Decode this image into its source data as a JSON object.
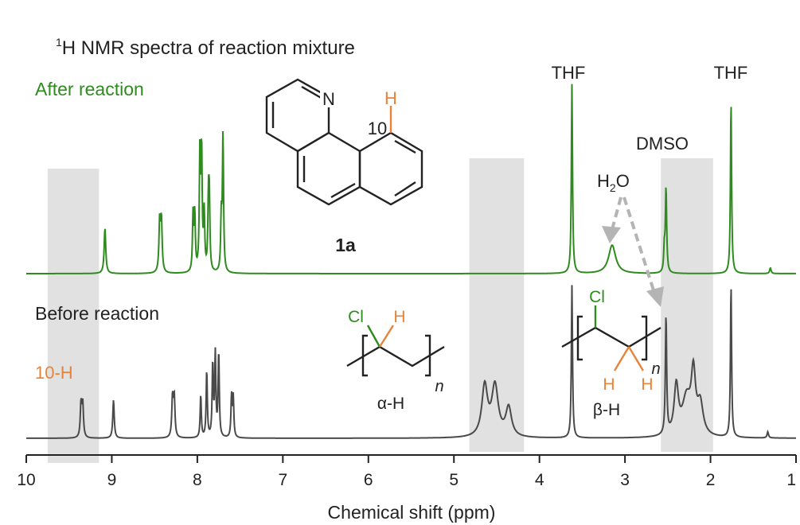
{
  "chart_data": {
    "type": "line",
    "title_sup": "1",
    "title_rest": "H NMR spectra of reaction mixture",
    "xlabel": "Chemical shift (ppm)",
    "x_ticks": [
      10,
      9,
      8,
      7,
      6,
      5,
      4,
      3,
      2,
      1
    ],
    "xlim": [
      10,
      1
    ],
    "series": [
      {
        "name": "After reaction",
        "color": "#2e8b1e",
        "peaks": [
          {
            "ppm": 9.08,
            "h": 0.24,
            "w": 0.011
          },
          {
            "ppm": 8.44,
            "h": 0.27,
            "w": 0.01
          },
          {
            "ppm": 8.42,
            "h": 0.27,
            "w": 0.01
          },
          {
            "ppm": 8.05,
            "h": 0.3,
            "w": 0.008
          },
          {
            "ppm": 8.03,
            "h": 0.3,
            "w": 0.008
          },
          {
            "ppm": 7.97,
            "h": 0.62,
            "w": 0.008
          },
          {
            "ppm": 7.95,
            "h": 0.63,
            "w": 0.008
          },
          {
            "ppm": 7.92,
            "h": 0.3,
            "w": 0.008
          },
          {
            "ppm": 7.87,
            "h": 0.34,
            "w": 0.008
          },
          {
            "ppm": 7.86,
            "h": 0.36,
            "w": 0.008
          },
          {
            "ppm": 7.72,
            "h": 0.28,
            "w": 0.008
          },
          {
            "ppm": 7.7,
            "h": 0.72,
            "w": 0.008
          },
          {
            "ppm": 3.62,
            "h": 1.0,
            "w": 0.008
          },
          {
            "ppm": 3.15,
            "h": 0.15,
            "w": 0.05
          },
          {
            "ppm": 2.52,
            "h": 0.45,
            "w": 0.009
          },
          {
            "ppm": 2.54,
            "h": 0.12,
            "w": 0.008
          },
          {
            "ppm": 1.76,
            "h": 0.91,
            "w": 0.008
          },
          {
            "ppm": 1.3,
            "h": 0.03,
            "w": 0.01
          }
        ]
      },
      {
        "name": "Before reaction",
        "color": "#4a4a4a",
        "peaks": [
          {
            "ppm": 9.36,
            "h": 0.22,
            "w": 0.01
          },
          {
            "ppm": 9.34,
            "h": 0.22,
            "w": 0.01
          },
          {
            "ppm": 8.98,
            "h": 0.25,
            "w": 0.01
          },
          {
            "ppm": 8.29,
            "h": 0.26,
            "w": 0.01
          },
          {
            "ppm": 8.27,
            "h": 0.26,
            "w": 0.01
          },
          {
            "ppm": 7.96,
            "h": 0.28,
            "w": 0.008
          },
          {
            "ppm": 7.89,
            "h": 0.44,
            "w": 0.008
          },
          {
            "ppm": 7.82,
            "h": 0.48,
            "w": 0.008
          },
          {
            "ppm": 7.79,
            "h": 0.54,
            "w": 0.008
          },
          {
            "ppm": 7.75,
            "h": 0.56,
            "w": 0.008
          },
          {
            "ppm": 7.6,
            "h": 0.27,
            "w": 0.008
          },
          {
            "ppm": 7.58,
            "h": 0.26,
            "w": 0.008
          },
          {
            "ppm": 4.64,
            "h": 0.33,
            "w": 0.04
          },
          {
            "ppm": 4.52,
            "h": 0.33,
            "w": 0.045
          },
          {
            "ppm": 4.36,
            "h": 0.19,
            "w": 0.04
          },
          {
            "ppm": 3.62,
            "h": 1.0,
            "w": 0.008
          },
          {
            "ppm": 2.52,
            "h": 0.78,
            "w": 0.009
          },
          {
            "ppm": 2.4,
            "h": 0.32,
            "w": 0.03
          },
          {
            "ppm": 2.28,
            "h": 0.24,
            "w": 0.06
          },
          {
            "ppm": 2.2,
            "h": 0.38,
            "w": 0.03
          },
          {
            "ppm": 2.12,
            "h": 0.2,
            "w": 0.04
          },
          {
            "ppm": 1.76,
            "h": 1.0,
            "w": 0.008
          },
          {
            "ppm": 1.33,
            "h": 0.04,
            "w": 0.01
          }
        ]
      }
    ],
    "highlight_regions": [
      [
        9.75,
        9.15
      ],
      [
        4.82,
        4.18
      ],
      [
        2.58,
        1.97
      ]
    ],
    "solvent_labels": [
      "THF",
      "THF",
      "DMSO"
    ],
    "water_label": {
      "base": "H",
      "sub": "2",
      "rest": "O"
    },
    "label_10h": "10-H",
    "compound": {
      "label": "1a",
      "atom_n": "N",
      "atom_h": "H",
      "position": "10"
    },
    "polymer_alpha": {
      "cl": "Cl",
      "h": "H",
      "n": "n",
      "caption": "α-H"
    },
    "polymer_beta": {
      "cl": "Cl",
      "h1": "H",
      "h2": "H",
      "n": "n",
      "caption": "β-H"
    },
    "colors": {
      "green": "#2e8b1e",
      "gray": "#4a4a4a",
      "orange": "#e8833a",
      "arrow": "#b4b4b4",
      "region": "#e1e1e1"
    }
  }
}
